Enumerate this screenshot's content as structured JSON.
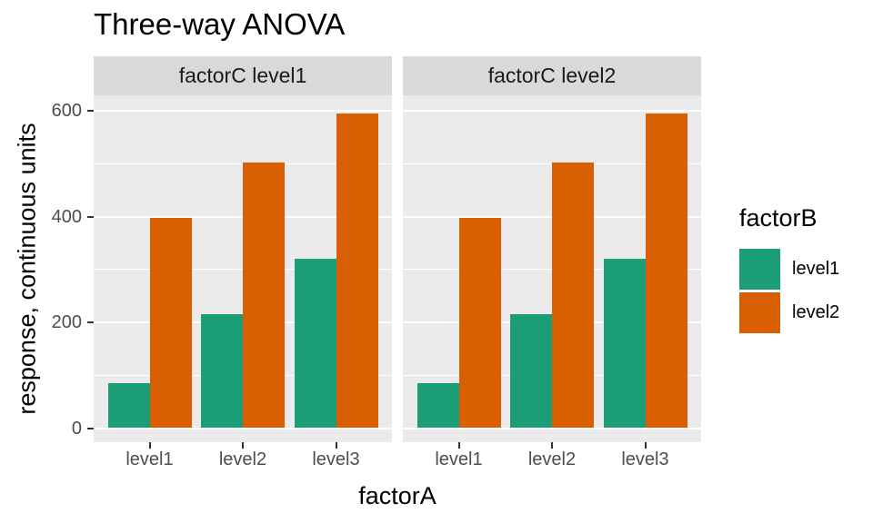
{
  "title": "Three-way ANOVA",
  "chart_data": {
    "type": "bar",
    "title": "Three-way ANOVA",
    "xlabel": "factorA",
    "ylabel": "response, continuous units",
    "categories": [
      "level1",
      "level2",
      "level3"
    ],
    "facet_variable": "factorC",
    "facets": [
      {
        "label": "factorC level1",
        "series": [
          {
            "name": "level1",
            "values": [
              85,
              215,
              320
            ]
          },
          {
            "name": "level2",
            "values": [
              398,
              503,
              595
            ]
          }
        ]
      },
      {
        "label": "factorC level2",
        "series": [
          {
            "name": "level1",
            "values": [
              85,
              215,
              320
            ]
          },
          {
            "name": "level2",
            "values": [
              398,
              503,
              595
            ]
          }
        ]
      }
    ],
    "legend": {
      "title": "factorB",
      "position": "right",
      "entries": [
        {
          "label": "level1",
          "color": "#1B9E77"
        },
        {
          "label": "level2",
          "color": "#D95F02"
        }
      ]
    },
    "ylim": [
      0,
      627
    ],
    "yticks": [
      0,
      200,
      400,
      600
    ],
    "yticks_minor": [
      100,
      300,
      500
    ],
    "grid": true,
    "colors": {
      "panel_background": "#EBEBEB",
      "strip_background": "#D9D9D9",
      "gridline": "#FFFFFF",
      "tick_label": "#4D4D4D",
      "tick_mark": "#333333",
      "text": "#000000"
    }
  }
}
